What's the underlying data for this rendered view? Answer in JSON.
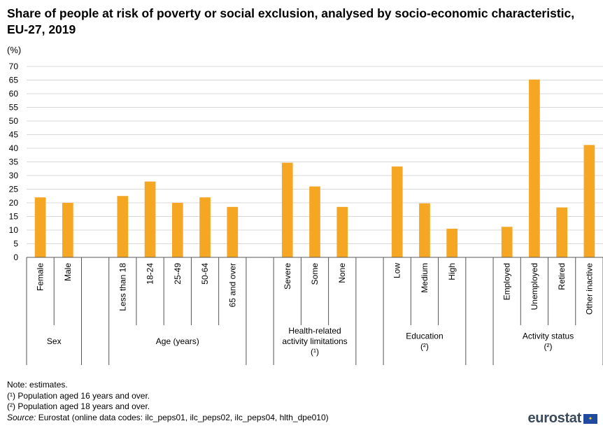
{
  "title": "Share of people at risk of poverty or social exclusion, analysed by socio-economic characteristic,  EU-27, 2019",
  "unit_label": "(%)",
  "chart_data": {
    "type": "bar",
    "ylim": [
      0,
      70
    ],
    "yticks": [
      "0",
      "5",
      "10",
      "15",
      "20",
      "25",
      "30",
      "35",
      "40",
      "45",
      "50",
      "55",
      "60",
      "65",
      "70"
    ],
    "bar_color": "#f5a623",
    "grid": true,
    "groups": [
      {
        "name_lines": [
          "Sex"
        ],
        "categories": [
          "Female",
          "Male"
        ],
        "values": [
          22.0,
          20.0
        ]
      },
      {
        "name_lines": [
          "Age (years)"
        ],
        "categories": [
          "Less than 18",
          "18-24",
          "25-49",
          "50-64",
          "65 and over"
        ],
        "values": [
          22.5,
          27.8,
          20.0,
          22.0,
          18.5
        ]
      },
      {
        "name_lines": [
          "Health-related",
          "activity limitations",
          "(¹)"
        ],
        "categories": [
          "Severe",
          "Some",
          "None"
        ],
        "values": [
          34.7,
          26.0,
          18.5
        ]
      },
      {
        "name_lines": [
          "Education",
          "(²)"
        ],
        "categories": [
          "Low",
          "Medium",
          "High"
        ],
        "values": [
          33.3,
          19.8,
          10.5
        ]
      },
      {
        "name_lines": [
          "Activity status",
          "(²)"
        ],
        "categories": [
          "Employed",
          "Unemployed",
          "Retired",
          "Other inactive"
        ],
        "values": [
          11.2,
          65.2,
          18.3,
          41.2
        ]
      }
    ]
  },
  "notes": {
    "note": "Note: estimates.",
    "fn1": "(¹) Population aged 16 years and over.",
    "fn2": "(²) Population aged 18 years and over.",
    "source_label": "Source:",
    "source_text": " Eurostat (online data codes: ilc_peps01, ilc_peps02, ilc_peps04, hlth_dpe010)"
  },
  "logo": {
    "text": "eurostat",
    "flag_icon": "eu-flag-icon"
  }
}
